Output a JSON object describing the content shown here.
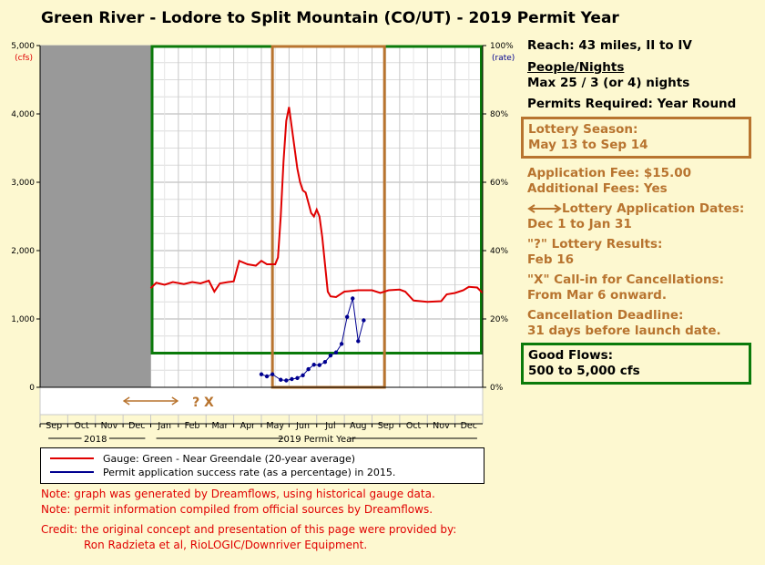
{
  "title": "Green River - Lodore to Split Mountain (CO/UT) - 2019 Permit Year",
  "colors": {
    "flow": "#e00000",
    "rate": "#000090",
    "lottery": "#b8742f",
    "goodflow": "#0a7a0a",
    "shade": "#999999"
  },
  "chart_data": {
    "type": "line",
    "left_axis": {
      "label": "(cfs)",
      "ticks": [
        "5,000",
        "4,000",
        "3,000",
        "2,000",
        "1,000",
        "0"
      ],
      "ylim": [
        0,
        5000
      ]
    },
    "right_axis": {
      "label": "(rate)",
      "ticks": [
        "100%",
        "80%",
        "60%",
        "40%",
        "20%",
        "0%"
      ],
      "ylim": [
        0,
        100
      ]
    },
    "months": [
      "Sep",
      "Oct",
      "Nov",
      "Dec",
      "Jan",
      "Feb",
      "Mar",
      "Apr",
      "May",
      "Jun",
      "Jul",
      "Aug",
      "Sep",
      "Oct",
      "Nov",
      "Dec"
    ],
    "year_labels": [
      "2018",
      "2019 Permit Year"
    ],
    "timeline_marks": [
      "? X"
    ],
    "good_flows_range_cfs": [
      500,
      5000
    ],
    "series": [
      {
        "name": "Gauge: Green - Near Greendale (20-year average)",
        "unit": "cfs",
        "points": [
          [
            4.0,
            1450
          ],
          [
            4.2,
            1530
          ],
          [
            4.5,
            1500
          ],
          [
            4.8,
            1540
          ],
          [
            5.2,
            1510
          ],
          [
            5.5,
            1540
          ],
          [
            5.8,
            1520
          ],
          [
            6.1,
            1560
          ],
          [
            6.3,
            1400
          ],
          [
            6.5,
            1520
          ],
          [
            6.8,
            1540
          ],
          [
            7.0,
            1550
          ],
          [
            7.2,
            1850
          ],
          [
            7.5,
            1800
          ],
          [
            7.8,
            1780
          ],
          [
            8.0,
            1850
          ],
          [
            8.2,
            1800
          ],
          [
            8.5,
            1800
          ],
          [
            8.6,
            1900
          ],
          [
            8.7,
            2500
          ],
          [
            8.8,
            3300
          ],
          [
            8.9,
            3900
          ],
          [
            9.0,
            4100
          ],
          [
            9.1,
            3800
          ],
          [
            9.2,
            3500
          ],
          [
            9.3,
            3200
          ],
          [
            9.4,
            3000
          ],
          [
            9.5,
            2880
          ],
          [
            9.6,
            2850
          ],
          [
            9.7,
            2700
          ],
          [
            9.8,
            2550
          ],
          [
            9.9,
            2500
          ],
          [
            10.0,
            2600
          ],
          [
            10.1,
            2500
          ],
          [
            10.2,
            2200
          ],
          [
            10.3,
            1800
          ],
          [
            10.4,
            1400
          ],
          [
            10.5,
            1330
          ],
          [
            10.7,
            1320
          ],
          [
            11.0,
            1400
          ],
          [
            11.5,
            1420
          ],
          [
            12.0,
            1420
          ],
          [
            12.3,
            1380
          ],
          [
            12.6,
            1420
          ],
          [
            13.0,
            1430
          ],
          [
            13.2,
            1400
          ],
          [
            13.5,
            1270
          ],
          [
            14.0,
            1250
          ],
          [
            14.5,
            1260
          ],
          [
            14.7,
            1360
          ],
          [
            15.0,
            1380
          ],
          [
            15.3,
            1420
          ],
          [
            15.5,
            1470
          ],
          [
            15.8,
            1460
          ],
          [
            16.0,
            1380
          ]
        ]
      },
      {
        "name": "Permit application success rate (as a percentage) in 2015.",
        "unit": "%",
        "points": [
          [
            8.0,
            3.8
          ],
          [
            8.2,
            3.2
          ],
          [
            8.4,
            3.8
          ],
          [
            8.7,
            2.2
          ],
          [
            8.9,
            2.0
          ],
          [
            9.1,
            2.4
          ],
          [
            9.3,
            2.7
          ],
          [
            9.5,
            3.5
          ],
          [
            9.7,
            5.3
          ],
          [
            9.9,
            6.6
          ],
          [
            10.1,
            6.5
          ],
          [
            10.3,
            7.4
          ],
          [
            10.5,
            9.3
          ],
          [
            10.7,
            10.2
          ],
          [
            10.9,
            12.7
          ],
          [
            11.1,
            20.6
          ],
          [
            11.3,
            26.0
          ],
          [
            11.5,
            13.5
          ],
          [
            11.7,
            19.6
          ]
        ]
      }
    ]
  },
  "info": {
    "reach": "Reach: 43 miles, II to IV",
    "people_heading": "People/Nights",
    "people": "Max 25 / 3 (or 4) nights",
    "permits": "Permits Required: Year Round",
    "lottery_season_1": "Lottery Season:",
    "lottery_season_2": "May 13 to Sep 14",
    "fee_1": "Application Fee: $15.00",
    "fee_2": "Additional Fees: Yes",
    "app_dates_1": "Lottery Application Dates:",
    "app_dates_2": "Dec 1 to Jan 31",
    "results_1": "\"?\" Lottery Results:",
    "results_2": "Feb 16",
    "callin_1": "\"X\" Call-in for Cancellations:",
    "callin_2": "From Mar 6 onward.",
    "cancel_1": "Cancellation Deadline:",
    "cancel_2": "31 days before launch date.",
    "good_1": "Good Flows:",
    "good_2": "500 to 5,000 cfs"
  },
  "notes": {
    "n1": "Note: graph was generated by Dreamflows, using historical gauge data.",
    "n2": "Note: permit information compiled from official sources by Dreamflows.",
    "credit": "Credit: the original concept and presentation of this page were provided by:",
    "credit2": "Ron Radzieta et al, RioLOGIC/Downriver Equipment."
  }
}
